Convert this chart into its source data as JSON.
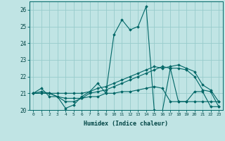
{
  "xlabel": "Humidex (Indice chaleur)",
  "xlim": [
    -0.5,
    23.5
  ],
  "ylim": [
    20,
    26.5
  ],
  "yticks": [
    20,
    21,
    22,
    23,
    24,
    25,
    26
  ],
  "xticks": [
    0,
    1,
    2,
    3,
    4,
    5,
    6,
    7,
    8,
    9,
    10,
    11,
    12,
    13,
    14,
    15,
    16,
    17,
    18,
    19,
    20,
    21,
    22,
    23
  ],
  "bg_color": "#c0e4e4",
  "grid_color": "#98cccc",
  "line_color": "#006666",
  "lines": [
    {
      "x": [
        0,
        1,
        2,
        3,
        4,
        5,
        6,
        7,
        8,
        9,
        10,
        11,
        12,
        13,
        14,
        15,
        16,
        17,
        18,
        19,
        20,
        21,
        22,
        23
      ],
      "y": [
        21.0,
        21.3,
        20.8,
        20.8,
        20.1,
        20.3,
        20.8,
        21.1,
        21.6,
        21.0,
        24.5,
        25.4,
        24.8,
        25.0,
        26.2,
        20.0,
        19.9,
        22.5,
        20.5,
        20.5,
        21.1,
        21.1,
        20.2,
        20.2
      ]
    },
    {
      "x": [
        0,
        1,
        2,
        3,
        4,
        5,
        6,
        7,
        8,
        9,
        10,
        11,
        12,
        13,
        14,
        15,
        16,
        17,
        18,
        19,
        20,
        21,
        22,
        23
      ],
      "y": [
        21.0,
        21.0,
        21.0,
        20.8,
        20.7,
        20.7,
        20.7,
        20.8,
        20.8,
        21.0,
        21.0,
        21.1,
        21.1,
        21.2,
        21.3,
        21.4,
        21.3,
        20.5,
        20.5,
        20.5,
        20.5,
        20.5,
        20.5,
        20.5
      ]
    },
    {
      "x": [
        0,
        1,
        2,
        3,
        4,
        5,
        6,
        7,
        8,
        9,
        10,
        11,
        12,
        13,
        14,
        15,
        16,
        17,
        18,
        19,
        20,
        21,
        22,
        23
      ],
      "y": [
        21.0,
        21.0,
        21.0,
        20.8,
        20.5,
        20.5,
        20.7,
        21.0,
        21.1,
        21.2,
        21.4,
        21.6,
        21.8,
        22.0,
        22.2,
        22.4,
        22.6,
        22.5,
        22.5,
        22.4,
        22.0,
        21.2,
        21.1,
        20.2
      ]
    },
    {
      "x": [
        0,
        1,
        2,
        3,
        4,
        5,
        6,
        7,
        8,
        9,
        10,
        11,
        12,
        13,
        14,
        15,
        16,
        17,
        18,
        19,
        20,
        21,
        22,
        23
      ],
      "y": [
        21.0,
        21.1,
        21.0,
        21.0,
        21.0,
        21.0,
        21.0,
        21.1,
        21.3,
        21.4,
        21.6,
        21.8,
        22.0,
        22.2,
        22.4,
        22.6,
        22.5,
        22.6,
        22.7,
        22.5,
        22.3,
        21.5,
        21.2,
        20.5
      ]
    }
  ]
}
